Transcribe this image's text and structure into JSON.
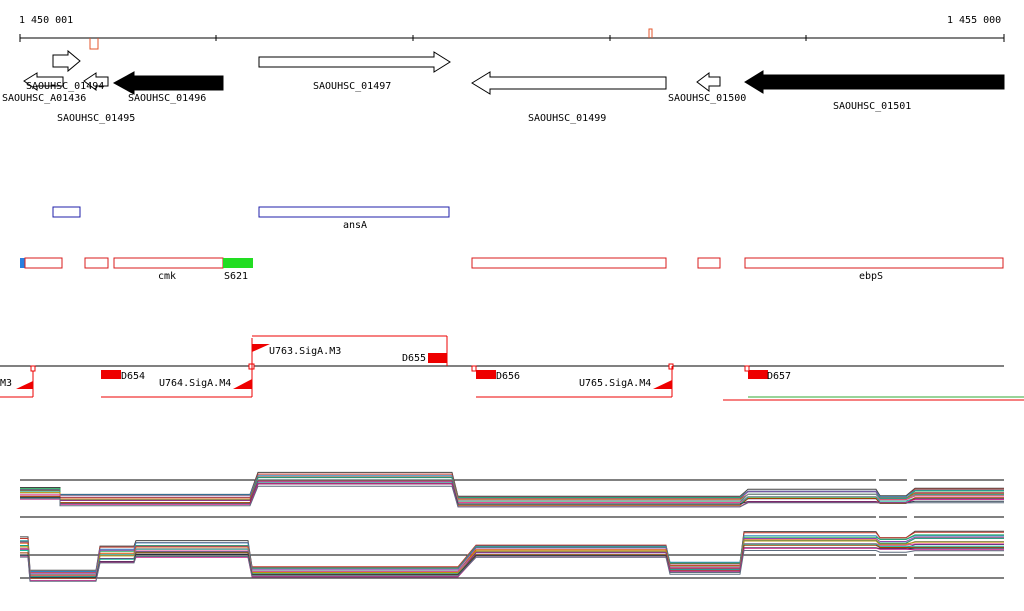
{
  "coordinates": {
    "start_label": "1 450 001",
    "end_label": "1 455 000"
  },
  "colors": {
    "ruler": "#000000",
    "strand_marker": "#e4572e",
    "gene_forward_outline": "#000000",
    "gene_filled": "#000000",
    "blue_feature": "#1f1fa8",
    "red_feature": "#d81b1b",
    "green_feature": "#22dd22",
    "blue_tick": "#2a80e0",
    "promoter": "#ee0000",
    "terminator_line_green": "#33aa33"
  },
  "genes": {
    "g1494": "SAOUHSC_01494",
    "a01436": "SAOUHSC_A01436",
    "g1495": "SAOUHSC_01495",
    "g1496": "SAOUHSC_01496",
    "g1497": "SAOUHSC_01497",
    "g1499": "SAOUHSC_01499",
    "g1500": "SAOUHSC_01500",
    "g1501": "SAOUHSC_01501"
  },
  "annotations": {
    "ansA": "ansA",
    "cmk": "cmk",
    "s621": "S621",
    "ebpS": "ebpS"
  },
  "regulatory": {
    "m3_left": "M3",
    "d654": "D654",
    "u764": "U764.SigA.M4",
    "u763": "U763.SigA.M3",
    "d655": "D655",
    "d656": "D656",
    "u765": "U765.SigA.M4",
    "d657": "D657"
  },
  "track_icons": [
    "arrow-right-outline-icon",
    "arrow-left-outline-icon",
    "arrow-left-filled-icon"
  ]
}
